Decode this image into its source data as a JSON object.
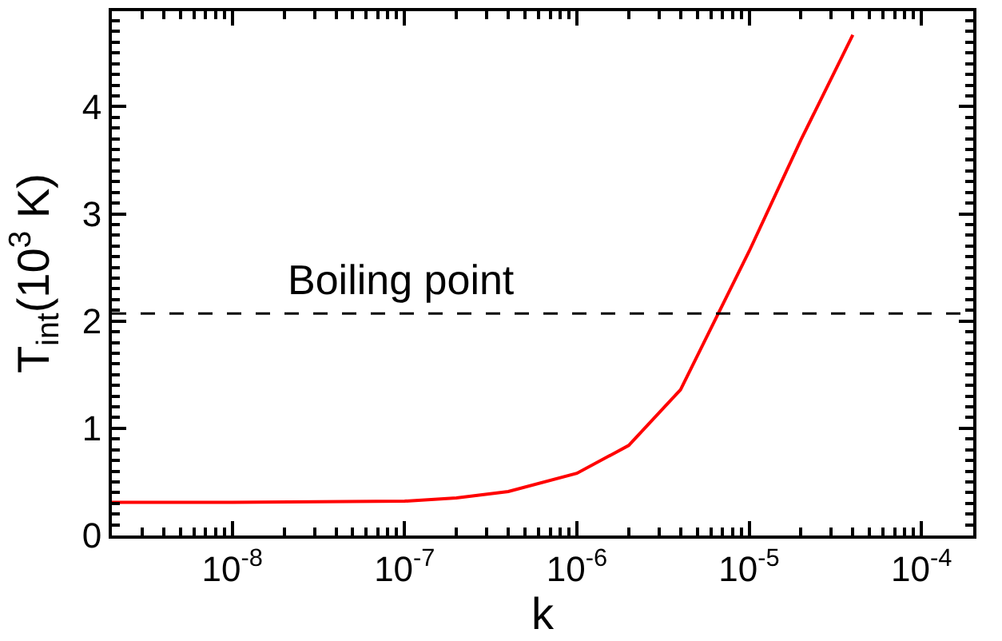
{
  "chart_data": {
    "type": "line",
    "xlabel": "k",
    "ylabel": "T$_{int}$(10$^{3}$ K)",
    "x": [
      2e-09,
      1e-08,
      1e-07,
      2e-07,
      4e-07,
      1e-06,
      2e-06,
      4e-06,
      1e-05,
      2e-05,
      4e-05
    ],
    "series": [
      {
        "color": "#ff0000",
        "values": [
          0.31,
          0.31,
          0.32,
          0.35,
          0.41,
          0.58,
          0.84,
          1.36,
          2.65,
          3.69,
          4.67
        ]
      }
    ],
    "log": "x",
    "xlim": [
      2e-09,
      0.0002
    ],
    "ylim": [
      0,
      4.89
    ],
    "xticks": [
      {
        "value": 1e-08,
        "label": "10$^{-8}$"
      },
      {
        "value": 1e-07,
        "label": "10$^{-7}$"
      },
      {
        "value": 1e-06,
        "label": "10$^{-6}$"
      },
      {
        "value": 1e-05,
        "label": "10$^{-5}$"
      },
      {
        "value": 0.0001,
        "label": "10$^{-4}$"
      }
    ],
    "yticks": [
      0,
      1,
      2,
      3,
      4
    ],
    "ref_lines": [
      {
        "axis": "y",
        "value": 2.07,
        "label": "Boiling point",
        "color": "#000000",
        "line_style": "dashed"
      }
    ]
  }
}
